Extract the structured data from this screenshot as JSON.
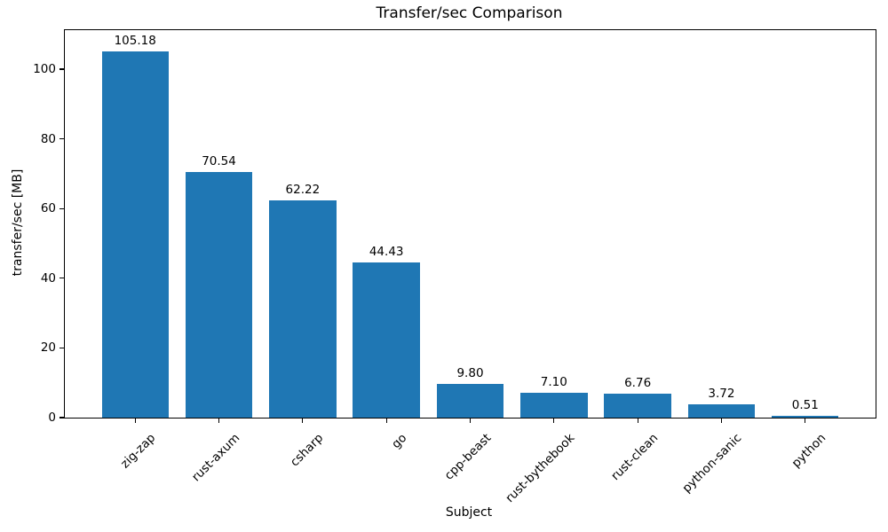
{
  "chart_data": {
    "type": "bar",
    "title": "Transfer/sec Comparison",
    "xlabel": "Subject",
    "ylabel": "transfer/sec [MB]",
    "categories": [
      "zig-zap",
      "rust-axum",
      "csharp",
      "go",
      "cpp-beast",
      "rust-bythebook",
      "rust-clean",
      "python-sanic",
      "python"
    ],
    "values": [
      105.18,
      70.54,
      62.22,
      44.43,
      9.8,
      7.1,
      6.76,
      3.72,
      0.51
    ],
    "value_label_decimals": 2,
    "yticks": [
      0,
      20,
      40,
      60,
      80,
      100
    ],
    "ylim": [
      0,
      111.2
    ],
    "bar_color": "#1f77b4",
    "grid": false,
    "legend": "none",
    "xtick_rotation_deg": 45
  }
}
